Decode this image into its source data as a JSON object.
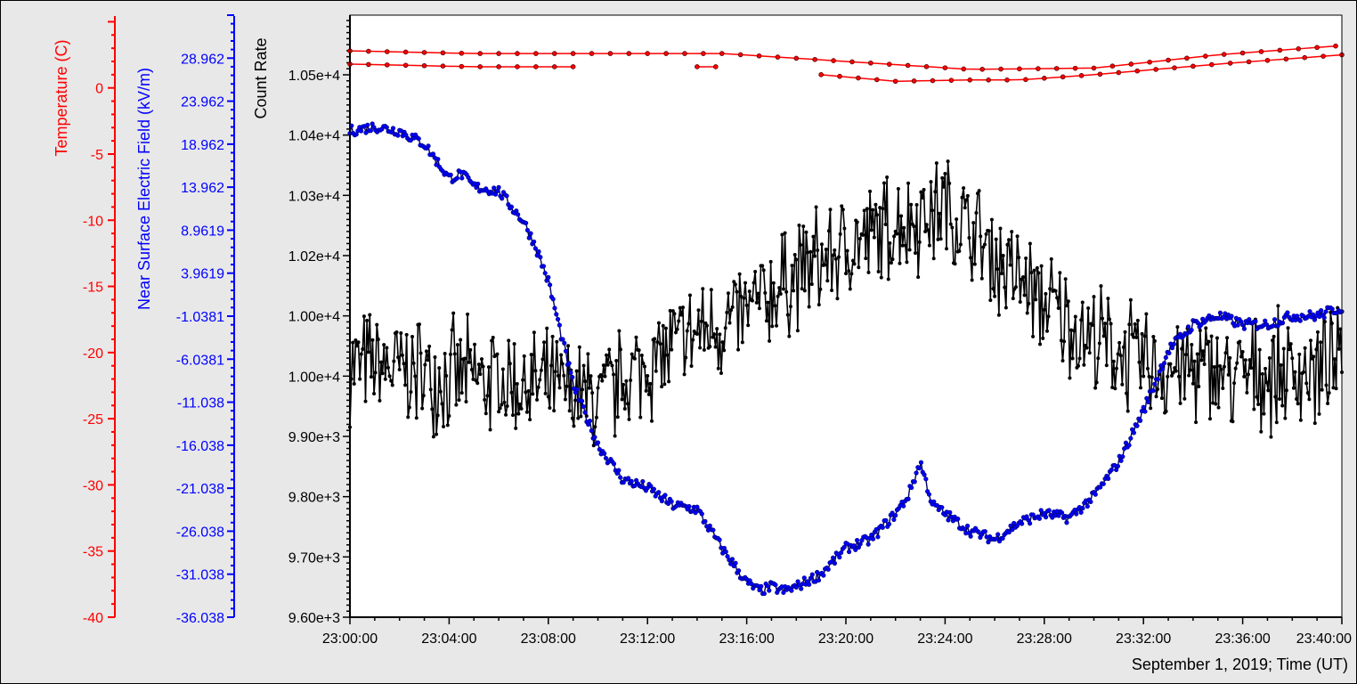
{
  "chart_data": {
    "type": "line",
    "xlabel": "September 1, 2019; Time (UT)",
    "x_ticks": [
      "23:00:00",
      "23:04:00",
      "23:08:00",
      "23:12:00",
      "23:16:00",
      "23:20:00",
      "23:24:00",
      "23:28:00",
      "23:32:00",
      "23:36:00",
      "23:40:00"
    ],
    "x_range_minutes": [
      0,
      40
    ],
    "axes": {
      "temperature": {
        "label": "Temperature (C)",
        "color": "#ff0000",
        "range": [
          -40,
          5.5
        ],
        "ticks": [
          "0",
          "-5",
          "-10",
          "-15",
          "-20",
          "-25",
          "-30",
          "-35",
          "-40"
        ]
      },
      "efield": {
        "label": "Near Surface Electric Field (kV/m)",
        "color": "#0000ff",
        "range": [
          -36.038,
          33.962
        ],
        "ticks": [
          "28.962",
          "23.962",
          "18.962",
          "13.962",
          "8.9619",
          "3.9619",
          "-1.0381",
          "-6.0381",
          "-11.038",
          "-16.038",
          "-21.038",
          "-26.038",
          "-31.038",
          "-36.038"
        ]
      },
      "count": {
        "label": "Count Rate",
        "color": "#000000",
        "range": [
          9600,
          10599
        ],
        "ticks": [
          "1.05e+4",
          "1.04e+4",
          "1.03e+4",
          "1.02e+4",
          "1.00e+4",
          "1.00e+4",
          "9.90e+3",
          "9.80e+3",
          "9.70e+3",
          "9.60e+3"
        ],
        "tick_values": [
          10500,
          10400,
          10300,
          10200,
          10100,
          10000,
          9900,
          9800,
          9700,
          9600
        ]
      }
    },
    "series": [
      {
        "name": "",
        "axis": "count",
        "color": "#000000",
        "style": "noisy",
        "baseline": {
          "x": [
            0,
            2,
            4,
            6,
            8,
            10,
            12,
            14,
            16,
            18,
            20,
            22,
            24,
            26,
            28,
            30,
            32,
            34,
            36,
            38,
            40
          ],
          "y": [
            10020,
            10010,
            10000,
            9990,
            9980,
            9960,
            10020,
            10070,
            10100,
            10170,
            10210,
            10250,
            10280,
            10200,
            10120,
            10060,
            10020,
            10010,
            10000,
            10010,
            10010
          ]
        },
        "amplitude": 110
      },
      {
        "name": "",
        "axis": "efield",
        "color": "#0000ff",
        "style": "smooth",
        "x": [
          0,
          1,
          2,
          3,
          3.5,
          4,
          4.5,
          5,
          6,
          7,
          7.5,
          8,
          9,
          10,
          11,
          12,
          13,
          14,
          15,
          15.5,
          16,
          16.5,
          17,
          17.5,
          18,
          19,
          20,
          21,
          22,
          22.5,
          23,
          23.5,
          24,
          25,
          26,
          27,
          28,
          29,
          30,
          31,
          32,
          33,
          34,
          35,
          36,
          37,
          38,
          39,
          40
        ],
        "y": [
          20.5,
          21,
          20.5,
          19,
          17,
          15,
          15.5,
          14,
          13.5,
          10,
          7,
          3,
          -9,
          -16,
          -20,
          -21,
          -23,
          -23.5,
          -28,
          -30,
          -32,
          -33,
          -32.5,
          -33,
          -32.5,
          -31,
          -28,
          -27,
          -24,
          -22,
          -18,
          -23,
          -24,
          -26,
          -27,
          -25,
          -24,
          -24.5,
          -22,
          -18,
          -12,
          -5,
          -2,
          -1,
          -2,
          -2,
          -1,
          -1,
          0
        ]
      },
      {
        "name": "",
        "axis": "temperature",
        "color": "#ff0000",
        "style": "dots",
        "x": [
          0,
          5,
          10,
          15,
          20,
          25,
          30,
          35,
          40
        ],
        "y": [
          2.8,
          2.6,
          2.6,
          2.6,
          2.0,
          1.4,
          1.5,
          2.5,
          3.2
        ]
      },
      {
        "name": "",
        "axis": "temperature",
        "color": "#ff0000",
        "style": "dots",
        "x": [
          0,
          5,
          9.5
        ],
        "y": [
          1.8,
          1.6,
          1.6
        ]
      },
      {
        "name": "",
        "axis": "temperature",
        "color": "#ff0000",
        "style": "dots",
        "x": [
          14,
          15
        ],
        "y": [
          1.6,
          1.6
        ]
      },
      {
        "name": "",
        "axis": "temperature",
        "color": "#ff0000",
        "style": "dots",
        "x": [
          19,
          22,
          25,
          27,
          30,
          35,
          40
        ],
        "y": [
          1.0,
          0.5,
          0.6,
          0.6,
          1.0,
          1.8,
          2.5
        ]
      }
    ]
  }
}
